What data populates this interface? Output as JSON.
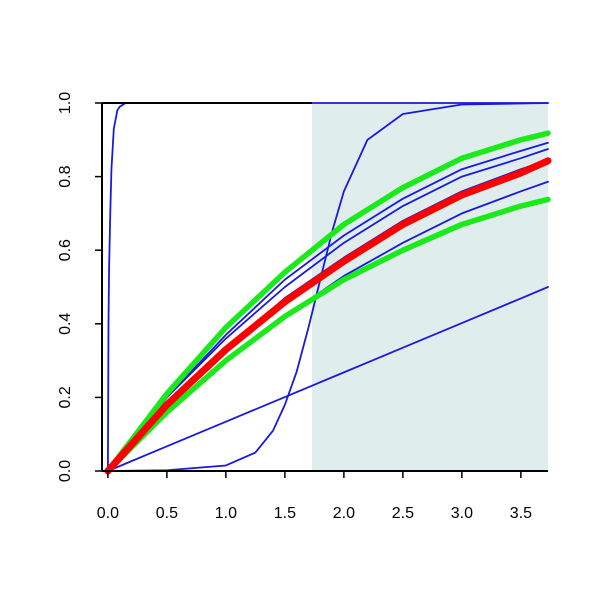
{
  "chart_data": {
    "type": "line",
    "title": "",
    "xlabel": "",
    "ylabel": "",
    "xlim": [
      -0.05,
      3.73
    ],
    "ylim": [
      0,
      1
    ],
    "x_ticks": [
      "0.0",
      "0.5",
      "1.0",
      "1.5",
      "2.0",
      "2.5",
      "3.0",
      "3.5"
    ],
    "y_ticks": [
      "0.0",
      "0.2",
      "0.4",
      "0.6",
      "0.8",
      "1.0"
    ],
    "shaded_region": {
      "x_from": 1.73,
      "x_to": 3.73,
      "color": "#e0eded"
    },
    "colors": {
      "thin_lines": "#1a1adb",
      "central_line": "#ff0000",
      "band_lines": "#1aea1a"
    },
    "series": [
      {
        "role": "thin",
        "x": [
          0,
          0.005,
          0.01,
          0.02,
          0.03,
          0.05,
          0.08,
          0.1,
          0.15,
          0.2,
          1.0,
          2.0,
          3.0,
          3.73
        ],
        "y": [
          0,
          0.4,
          0.55,
          0.7,
          0.82,
          0.93,
          0.98,
          0.99,
          1.0,
          1.0,
          1.0,
          1.0,
          1.0,
          1.0
        ]
      },
      {
        "role": "thin",
        "x": [
          0,
          0.5,
          1.0,
          1.25,
          1.4,
          1.5,
          1.6,
          1.7,
          1.8,
          1.9,
          2.0,
          2.2,
          2.5,
          3.0,
          3.73
        ],
        "y": [
          0,
          0.002,
          0.015,
          0.05,
          0.11,
          0.18,
          0.27,
          0.39,
          0.52,
          0.65,
          0.76,
          0.9,
          0.97,
          0.996,
          1.0
        ]
      },
      {
        "role": "thin",
        "x": [
          0,
          0.5,
          1.0,
          1.5,
          2.0,
          2.5,
          3.0,
          3.5,
          3.73
        ],
        "y": [
          0,
          0.067,
          0.134,
          0.201,
          0.268,
          0.335,
          0.402,
          0.469,
          0.5
        ]
      },
      {
        "role": "thin",
        "x": [
          0,
          0.5,
          1.0,
          1.5,
          2.0,
          2.5,
          3.0,
          3.5,
          3.73
        ],
        "y": [
          0,
          0.16,
          0.3,
          0.42,
          0.53,
          0.62,
          0.7,
          0.76,
          0.786
        ]
      },
      {
        "role": "thin",
        "x": [
          0,
          0.5,
          1.0,
          1.5,
          2.0,
          2.5,
          3.0,
          3.5,
          3.73
        ],
        "y": [
          0,
          0.18,
          0.33,
          0.47,
          0.58,
          0.68,
          0.76,
          0.82,
          0.845
        ]
      },
      {
        "role": "thin",
        "x": [
          0,
          0.5,
          1.0,
          1.5,
          2.0,
          2.5,
          3.0,
          3.5,
          3.73
        ],
        "y": [
          0,
          0.2,
          0.36,
          0.5,
          0.62,
          0.72,
          0.8,
          0.85,
          0.875
        ]
      },
      {
        "role": "thin",
        "x": [
          0,
          0.5,
          1.0,
          1.5,
          2.0,
          2.5,
          3.0,
          3.5,
          3.73
        ],
        "y": [
          0,
          0.2,
          0.37,
          0.52,
          0.64,
          0.74,
          0.82,
          0.87,
          0.892
        ]
      },
      {
        "role": "band",
        "x": [
          0,
          0.5,
          1.0,
          1.5,
          2.0,
          2.5,
          3.0,
          3.5,
          3.73
        ],
        "y": [
          0,
          0.16,
          0.3,
          0.42,
          0.52,
          0.6,
          0.67,
          0.72,
          0.738
        ]
      },
      {
        "role": "band",
        "x": [
          0,
          0.5,
          1.0,
          1.5,
          2.0,
          2.5,
          3.0,
          3.5,
          3.73
        ],
        "y": [
          0,
          0.21,
          0.39,
          0.54,
          0.67,
          0.77,
          0.85,
          0.9,
          0.918
        ]
      },
      {
        "role": "central",
        "x": [
          0,
          0.5,
          1.0,
          1.5,
          2.0,
          2.5,
          3.0,
          3.5,
          3.73
        ],
        "y": [
          0,
          0.18,
          0.33,
          0.46,
          0.57,
          0.67,
          0.75,
          0.81,
          0.843
        ]
      }
    ]
  }
}
